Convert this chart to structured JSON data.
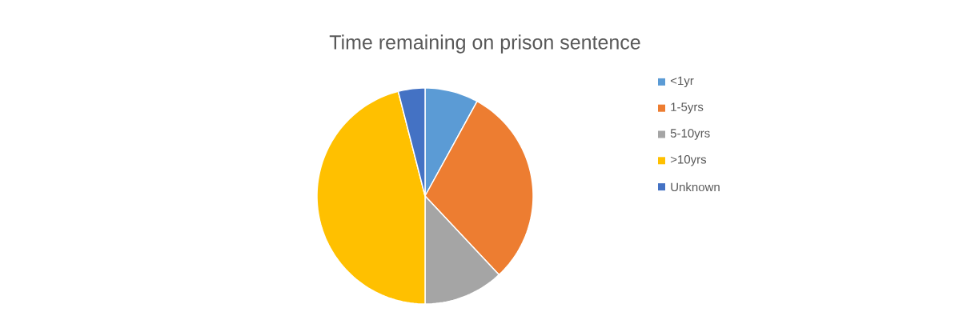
{
  "chart_data": {
    "type": "pie",
    "title": "Time remaining on prison sentence",
    "categories": [
      "<1yr",
      "1-5yrs",
      "5-10yrs",
      ">10yrs",
      "Unknown"
    ],
    "values": [
      8,
      30,
      12,
      46,
      4
    ],
    "colors": [
      "#5b9bd5",
      "#ed7d31",
      "#a5a5a5",
      "#ffc000",
      "#4472c4"
    ],
    "legend": "right"
  }
}
